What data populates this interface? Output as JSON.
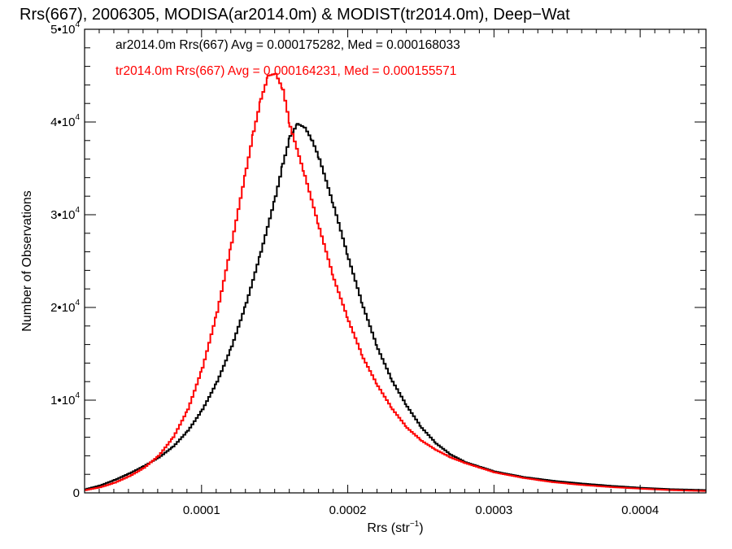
{
  "chart_data": {
    "type": "line",
    "title": "Rrs(667), 2006305, MODISA(ar2014.0m) & MODIST(tr2014.0m), Deep−Wat",
    "xlabel": "Rrs (str",
    "xlabel_sup": "−1",
    "xlabel_end": ")",
    "ylabel": "Number of Observations",
    "xlim": [
      2e-05,
      0.000445
    ],
    "ylim": [
      0,
      50000
    ],
    "x_ticks": [
      {
        "value": 0.0001,
        "label": "0.0001"
      },
      {
        "value": 0.0002,
        "label": "0.0002"
      },
      {
        "value": 0.0003,
        "label": "0.0003"
      },
      {
        "value": 0.0004,
        "label": "0.0004"
      }
    ],
    "y_ticks": [
      {
        "value": 0,
        "base": "0",
        "sup": ""
      },
      {
        "value": 10000,
        "base": "1•10",
        "sup": "4"
      },
      {
        "value": 20000,
        "base": "2•10",
        "sup": "4"
      },
      {
        "value": 30000,
        "base": "3•10",
        "sup": "4"
      },
      {
        "value": 40000,
        "base": "4•10",
        "sup": "4"
      },
      {
        "value": 50000,
        "base": "5•10",
        "sup": "4"
      }
    ],
    "series": [
      {
        "name": "ar2014.0m",
        "legend": "ar2014.0m Rrs(667) Avg = 0.000175282, Med = 0.000168033",
        "color": "#000000",
        "points": [
          [
            2e-05,
            400
          ],
          [
            3e-05,
            800
          ],
          [
            4e-05,
            1400
          ],
          [
            5e-05,
            2100
          ],
          [
            6e-05,
            2900
          ],
          [
            7e-05,
            3800
          ],
          [
            8e-05,
            5000
          ],
          [
            9e-05,
            6700
          ],
          [
            0.0001,
            9000
          ],
          [
            0.00011,
            12000
          ],
          [
            0.00012,
            15800
          ],
          [
            0.00013,
            20500
          ],
          [
            0.00014,
            26000
          ],
          [
            0.00015,
            32000
          ],
          [
            0.000155,
            35500
          ],
          [
            0.00016,
            38500
          ],
          [
            0.000165,
            39800
          ],
          [
            0.00017,
            39400
          ],
          [
            0.000175,
            38000
          ],
          [
            0.00018,
            36000
          ],
          [
            0.00019,
            30800
          ],
          [
            0.0002,
            25200
          ],
          [
            0.00021,
            20000
          ],
          [
            0.00022,
            15500
          ],
          [
            0.00023,
            12000
          ],
          [
            0.00024,
            9300
          ],
          [
            0.00025,
            7000
          ],
          [
            0.00026,
            5300
          ],
          [
            0.00027,
            4100
          ],
          [
            0.00028,
            3300
          ],
          [
            0.00029,
            2800
          ],
          [
            0.0003,
            2300
          ],
          [
            0.00032,
            1700
          ],
          [
            0.00034,
            1300
          ],
          [
            0.00036,
            1000
          ],
          [
            0.00038,
            750
          ],
          [
            0.0004,
            550
          ],
          [
            0.00042,
            400
          ],
          [
            0.000445,
            300
          ]
        ]
      },
      {
        "name": "tr2014.0m",
        "legend": "tr2014.0m Rrs(667) Avg = 0.000164231, Med = 0.000155571",
        "color": "#ff0000",
        "points": [
          [
            2e-05,
            300
          ],
          [
            3e-05,
            600
          ],
          [
            4e-05,
            1100
          ],
          [
            5e-05,
            1800
          ],
          [
            6e-05,
            2700
          ],
          [
            7e-05,
            4000
          ],
          [
            8e-05,
            6000
          ],
          [
            9e-05,
            9000
          ],
          [
            0.0001,
            13500
          ],
          [
            0.00011,
            19500
          ],
          [
            0.00012,
            27000
          ],
          [
            0.00013,
            35000
          ],
          [
            0.000135,
            39000
          ],
          [
            0.00014,
            42500
          ],
          [
            0.000145,
            45000
          ],
          [
            0.00015,
            45200
          ],
          [
            0.000155,
            43500
          ],
          [
            0.00016,
            39500
          ],
          [
            0.00017,
            34200
          ],
          [
            0.00018,
            28500
          ],
          [
            0.00019,
            23000
          ],
          [
            0.0002,
            18500
          ],
          [
            0.00021,
            14500
          ],
          [
            0.00022,
            11500
          ],
          [
            0.00023,
            9000
          ],
          [
            0.00024,
            7000
          ],
          [
            0.00025,
            5600
          ],
          [
            0.00026,
            4600
          ],
          [
            0.00027,
            3800
          ],
          [
            0.00028,
            3200
          ],
          [
            0.00029,
            2700
          ],
          [
            0.0003,
            2200
          ],
          [
            0.00032,
            1600
          ],
          [
            0.00034,
            1150
          ],
          [
            0.00036,
            850
          ],
          [
            0.00038,
            620
          ],
          [
            0.0004,
            450
          ],
          [
            0.00042,
            300
          ],
          [
            0.000445,
            200
          ]
        ]
      }
    ]
  }
}
